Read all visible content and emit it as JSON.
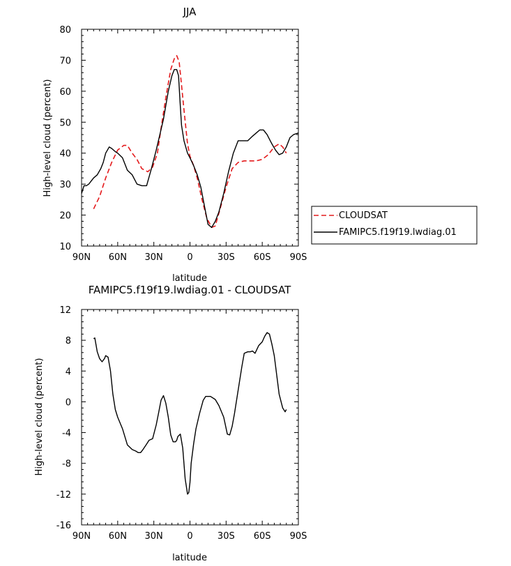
{
  "chart_data": [
    {
      "type": "line",
      "title": "JJA",
      "xlabel": "latitude",
      "ylabel": "High-level cloud (percent)",
      "xlim": [
        -90,
        90
      ],
      "ylim": [
        10,
        80
      ],
      "xticks": [
        -90,
        -60,
        -30,
        0,
        30,
        60,
        90
      ],
      "xtick_labels": [
        "90N",
        "60N",
        "30N",
        "0",
        "30S",
        "60S",
        "90S"
      ],
      "yticks": [
        10,
        20,
        30,
        40,
        50,
        60,
        70,
        80
      ],
      "ytick_labels": [
        "10",
        "20",
        "30",
        "40",
        "50",
        "60",
        "70",
        "80"
      ],
      "legend_position": "right",
      "series": [
        {
          "name": "CLOUDSAT",
          "color": "#e41a1c",
          "dash": "dashed",
          "x": [
            -80,
            -75,
            -70,
            -65,
            -60,
            -55,
            -52,
            -48,
            -44,
            -40,
            -35,
            -31,
            -27,
            -24,
            -20,
            -16,
            -13,
            -11,
            -9,
            -7,
            -5,
            -2,
            0,
            3,
            6,
            10,
            14,
            18,
            21,
            25,
            30,
            35,
            40,
            45,
            50,
            55,
            60,
            65,
            70,
            74,
            77,
            80
          ],
          "y": [
            22,
            26,
            32,
            37,
            41,
            42.5,
            42.5,
            40,
            38,
            35,
            34,
            35.5,
            40,
            48,
            58,
            67,
            70.5,
            71.5,
            69.5,
            62,
            54,
            43,
            39,
            36,
            32,
            25,
            19,
            16,
            16.5,
            22,
            29,
            35,
            37,
            37.5,
            37.5,
            37.5,
            38,
            39.5,
            42,
            43,
            42,
            40
          ]
        },
        {
          "name": "FAMIPC5.f19f19.lwdiag.01",
          "color": "#000000",
          "dash": "solid",
          "x": [
            -90,
            -88,
            -86,
            -84,
            -82,
            -80,
            -77,
            -74,
            -72,
            -70,
            -67,
            -65,
            -62,
            -60,
            -56,
            -52,
            -48,
            -44,
            -40,
            -36,
            -32,
            -28,
            -25,
            -22,
            -18,
            -15,
            -13,
            -11,
            -9.5,
            -8,
            -7,
            -5,
            -2,
            0,
            3,
            6,
            9,
            12,
            15,
            18,
            21,
            24,
            28,
            32,
            36,
            40,
            44,
            48,
            52,
            55,
            58,
            61,
            64,
            66,
            68,
            71,
            74,
            77,
            80,
            83,
            86,
            90
          ],
          "y": [
            27,
            29.5,
            29.5,
            30,
            31,
            32,
            33,
            35,
            37,
            40,
            42,
            41.5,
            40.5,
            40,
            38.5,
            34.5,
            33,
            30,
            29.5,
            29.5,
            35,
            41,
            46,
            51,
            60,
            65,
            67,
            67,
            65,
            55,
            49,
            44,
            40,
            38.5,
            36,
            33,
            29,
            23,
            17,
            16,
            18,
            21,
            27,
            34,
            40,
            44,
            44,
            44,
            45.5,
            46.5,
            47.5,
            47.5,
            46,
            44.5,
            43,
            41,
            39.5,
            40,
            42,
            45,
            46,
            46.5
          ]
        }
      ]
    },
    {
      "type": "line",
      "title": "FAMIPC5.f19f19.lwdiag.01 - CLOUDSAT",
      "xlabel": "latitude",
      "ylabel": "High-level cloud (percent)",
      "xlim": [
        -90,
        90
      ],
      "ylim": [
        -16,
        12
      ],
      "xticks": [
        -90,
        -60,
        -30,
        0,
        30,
        60,
        90
      ],
      "xtick_labels": [
        "90N",
        "60N",
        "30N",
        "0",
        "30S",
        "60S",
        "90S"
      ],
      "yticks": [
        -16,
        -12,
        -8,
        -4,
        0,
        4,
        8,
        12
      ],
      "ytick_labels": [
        "-16",
        "-12",
        "-8",
        "-4",
        "0",
        "4",
        "8",
        "12"
      ],
      "series": [
        {
          "color": "#000000",
          "dash": "solid",
          "x": [
            -80,
            -79,
            -77,
            -75,
            -73,
            -71,
            -70,
            -68,
            -66,
            -64,
            -62,
            -60,
            -56,
            -52,
            -48,
            -45,
            -43,
            -41,
            -39,
            -36,
            -34,
            -31,
            -28,
            -26,
            -24,
            -22,
            -20,
            -18,
            -16,
            -14,
            -12,
            -11,
            -10,
            -8,
            -6,
            -4,
            -2,
            -1,
            0,
            1,
            3,
            5,
            8,
            11,
            13,
            15,
            17,
            21,
            24,
            28,
            31,
            33,
            35,
            37,
            40,
            43,
            45,
            48,
            50,
            52,
            54,
            57,
            60,
            62,
            64,
            66,
            68,
            70,
            72,
            74,
            77,
            79,
            80
          ],
          "y": [
            8.2,
            8.3,
            6.5,
            5.6,
            5.2,
            5.6,
            6,
            5.8,
            4,
            1,
            -1,
            -2,
            -3.5,
            -5.6,
            -6.2,
            -6.4,
            -6.6,
            -6.6,
            -6.2,
            -5.5,
            -5,
            -4.8,
            -3,
            -1.4,
            0.2,
            0.8,
            -0.2,
            -2,
            -4.3,
            -5.2,
            -5.2,
            -5,
            -4.5,
            -4.2,
            -6,
            -10,
            -12,
            -11.8,
            -10.5,
            -8,
            -5.5,
            -3.5,
            -1.5,
            0.2,
            0.7,
            0.7,
            0.7,
            0.3,
            -0.5,
            -2,
            -4.2,
            -4.3,
            -3.2,
            -1.5,
            1.5,
            4.5,
            6.3,
            6.5,
            6.5,
            6.6,
            6.3,
            7.3,
            7.8,
            8.5,
            9,
            8.8,
            7.5,
            6,
            3.5,
            1,
            -0.8,
            -1.3,
            -1
          ]
        }
      ]
    }
  ]
}
